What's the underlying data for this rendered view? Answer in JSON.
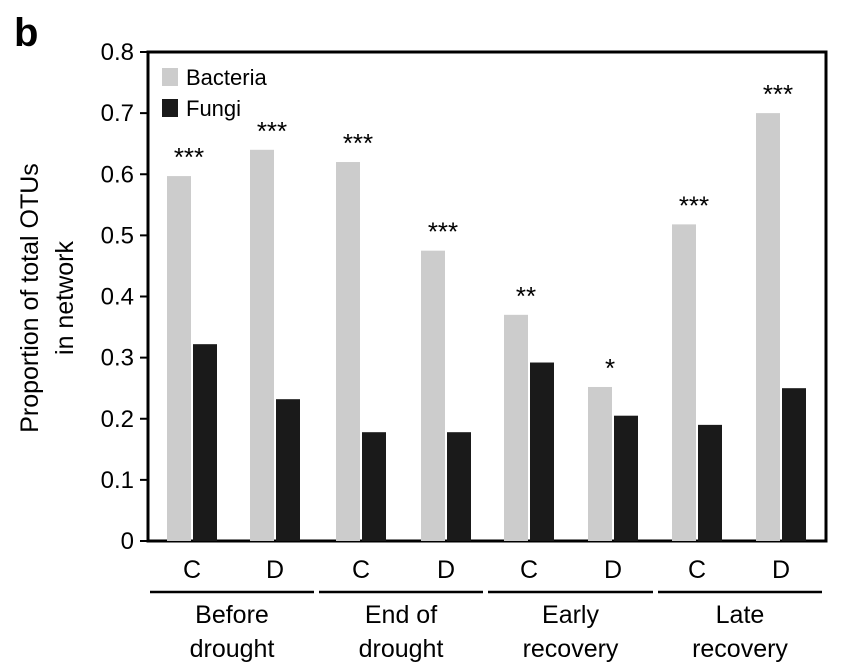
{
  "panel_label": "b",
  "chart_data": {
    "type": "bar",
    "title": "",
    "xlabel": "",
    "ylabel": [
      "Proportion of total OTUs",
      "in network"
    ],
    "ylim": [
      0,
      0.8
    ],
    "yticks": [
      "0",
      "0.1",
      "0.2",
      "0.3",
      "0.4",
      "0.5",
      "0.6",
      "0.7",
      "0.8"
    ],
    "legend_position": "top-left",
    "groups": [
      "Before drought",
      "End of drought",
      "Early recovery",
      "Late recovery"
    ],
    "group_label_lines": [
      [
        "Before",
        "drought"
      ],
      [
        "End of",
        "drought"
      ],
      [
        "Early",
        "recovery"
      ],
      [
        "Late",
        "recovery"
      ]
    ],
    "categories": [
      "C",
      "D",
      "C",
      "D",
      "C",
      "D",
      "C",
      "D"
    ],
    "series": [
      {
        "name": "Bacteria",
        "color": "#cccccc",
        "values": [
          0.597,
          0.64,
          0.62,
          0.475,
          0.37,
          0.252,
          0.518,
          0.7
        ]
      },
      {
        "name": "Fungi",
        "color": "#1a1a1a",
        "values": [
          0.322,
          0.232,
          0.178,
          0.178,
          0.292,
          0.205,
          0.19,
          0.25
        ]
      }
    ],
    "significance": [
      "***",
      "***",
      "***",
      "***",
      "**",
      "*",
      "***",
      "***"
    ]
  }
}
